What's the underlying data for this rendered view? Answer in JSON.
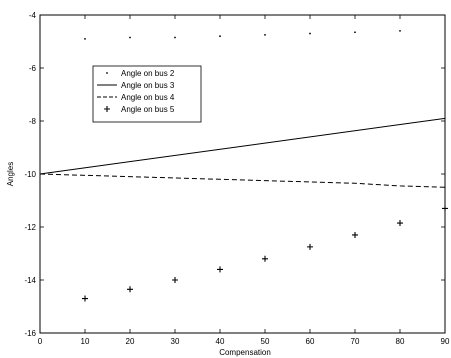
{
  "chart_data": {
    "type": "line",
    "xlabel": "Compensation",
    "ylabel": "Angles",
    "xlim": [
      0,
      90
    ],
    "ylim": [
      -16,
      -4
    ],
    "x_ticks": [
      0,
      10,
      20,
      30,
      40,
      50,
      60,
      70,
      80,
      90
    ],
    "y_ticks": [
      -16,
      -14,
      -12,
      -10,
      -8,
      -6,
      -4
    ],
    "grid": false,
    "legend_position": "upper-left",
    "series": [
      {
        "name": "Angle on bus 2",
        "style": "dots",
        "x": [
          10,
          20,
          30,
          40,
          50,
          60,
          70,
          80
        ],
        "y": [
          -4.9,
          -4.85,
          -4.85,
          -4.8,
          -4.75,
          -4.7,
          -4.65,
          -4.6
        ]
      },
      {
        "name": "Angle on bus 3",
        "style": "solid",
        "x": [
          0,
          90
        ],
        "y": [
          -10.0,
          -7.9
        ]
      },
      {
        "name": "Angle on bus 4",
        "style": "dashed",
        "x": [
          0,
          10,
          20,
          30,
          40,
          50,
          60,
          70,
          80,
          90
        ],
        "y": [
          -10.0,
          -10.05,
          -10.1,
          -10.15,
          -10.2,
          -10.25,
          -10.3,
          -10.35,
          -10.45,
          -10.5
        ]
      },
      {
        "name": "Angle on bus 5",
        "style": "plus",
        "x": [
          10,
          20,
          30,
          40,
          50,
          60,
          70,
          80,
          90
        ],
        "y": [
          -14.7,
          -14.35,
          -14.0,
          -13.6,
          -13.2,
          -12.75,
          -12.3,
          -11.85,
          -11.3
        ]
      }
    ]
  }
}
